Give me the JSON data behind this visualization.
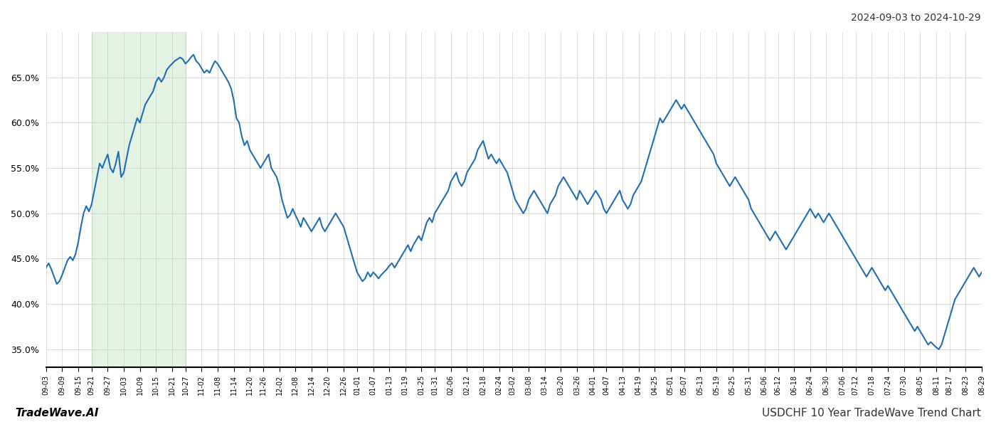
{
  "title_top_right": "2024-09-03 to 2024-10-29",
  "title_bottom_right": "USDCHF 10 Year TradeWave Trend Chart",
  "title_bottom_left": "TradeWave.AI",
  "line_color": "#1f6eb5",
  "line_width": 1.5,
  "shade_color": "#c8e6c9",
  "shade_alpha": 0.5,
  "shade_start_label": "09-21",
  "shade_end_label": "10-27",
  "background_color": "#ffffff",
  "grid_color": "#cccccc",
  "ylim_min": 33.0,
  "ylim_max": 70.0,
  "yticks": [
    35.0,
    40.0,
    45.0,
    50.0,
    55.0,
    60.0,
    65.0
  ],
  "xtick_labels": [
    "09-03",
    "09-09",
    "09-15",
    "09-21",
    "09-27",
    "10-03",
    "10-09",
    "10-15",
    "10-21",
    "10-27",
    "11-02",
    "11-08",
    "11-14",
    "11-20",
    "11-26",
    "12-02",
    "12-08",
    "12-14",
    "12-20",
    "12-26",
    "01-01",
    "01-07",
    "01-13",
    "01-19",
    "01-25",
    "01-31",
    "02-06",
    "02-12",
    "02-18",
    "02-24",
    "03-02",
    "03-08",
    "03-14",
    "03-20",
    "03-26",
    "04-01",
    "04-07",
    "04-13",
    "04-19",
    "04-25",
    "05-01",
    "05-07",
    "05-13",
    "05-19",
    "05-25",
    "05-31",
    "06-06",
    "06-12",
    "06-18",
    "06-24",
    "06-30",
    "07-06",
    "07-12",
    "07-18",
    "07-24",
    "07-30",
    "08-05",
    "08-11",
    "08-17",
    "08-23",
    "08-29"
  ],
  "data": [
    44.0,
    44.5,
    43.8,
    43.0,
    42.2,
    42.5,
    43.2,
    44.0,
    44.8,
    45.2,
    44.8,
    45.5,
    46.8,
    48.5,
    50.0,
    50.8,
    50.2,
    51.0,
    52.5,
    54.0,
    55.5,
    55.0,
    55.8,
    56.5,
    55.0,
    54.5,
    55.5,
    56.8,
    54.0,
    54.5,
    56.0,
    57.5,
    58.5,
    59.5,
    60.5,
    60.0,
    61.0,
    62.0,
    62.5,
    63.0,
    63.5,
    64.5,
    65.0,
    64.5,
    65.0,
    65.8,
    66.2,
    66.5,
    66.8,
    67.0,
    67.2,
    67.0,
    66.5,
    66.8,
    67.2,
    67.5,
    66.8,
    66.5,
    66.0,
    65.5,
    65.8,
    65.5,
    66.2,
    66.8,
    66.5,
    66.0,
    65.5,
    65.0,
    64.5,
    63.8,
    62.5,
    60.5,
    60.0,
    58.5,
    57.5,
    58.0,
    57.0,
    56.5,
    56.0,
    55.5,
    55.0,
    55.5,
    56.0,
    56.5,
    55.0,
    54.5,
    54.0,
    53.0,
    51.5,
    50.5,
    49.5,
    49.8,
    50.5,
    49.8,
    49.2,
    48.5,
    49.5,
    49.0,
    48.5,
    48.0,
    48.5,
    49.0,
    49.5,
    48.5,
    48.0,
    48.5,
    49.0,
    49.5,
    50.0,
    49.5,
    49.0,
    48.5,
    47.5,
    46.5,
    45.5,
    44.5,
    43.5,
    43.0,
    42.5,
    42.8,
    43.5,
    43.0,
    43.5,
    43.2,
    42.8,
    43.2,
    43.5,
    43.8,
    44.2,
    44.5,
    44.0,
    44.5,
    45.0,
    45.5,
    46.0,
    46.5,
    45.8,
    46.5,
    47.0,
    47.5,
    47.0,
    48.0,
    49.0,
    49.5,
    49.0,
    50.0,
    50.5,
    51.0,
    51.5,
    52.0,
    52.5,
    53.5,
    54.0,
    54.5,
    53.5,
    53.0,
    53.5,
    54.5,
    55.0,
    55.5,
    56.0,
    57.0,
    57.5,
    58.0,
    57.0,
    56.0,
    56.5,
    56.0,
    55.5,
    56.0,
    55.5,
    55.0,
    54.5,
    53.5,
    52.5,
    51.5,
    51.0,
    50.5,
    50.0,
    50.5,
    51.5,
    52.0,
    52.5,
    52.0,
    51.5,
    51.0,
    50.5,
    50.0,
    51.0,
    51.5,
    52.0,
    53.0,
    53.5,
    54.0,
    53.5,
    53.0,
    52.5,
    52.0,
    51.5,
    52.5,
    52.0,
    51.5,
    51.0,
    51.5,
    52.0,
    52.5,
    52.0,
    51.5,
    50.5,
    50.0,
    50.5,
    51.0,
    51.5,
    52.0,
    52.5,
    51.5,
    51.0,
    50.5,
    51.0,
    52.0,
    52.5,
    53.0,
    53.5,
    54.5,
    55.5,
    56.5,
    57.5,
    58.5,
    59.5,
    60.5,
    60.0,
    60.5,
    61.0,
    61.5,
    62.0,
    62.5,
    62.0,
    61.5,
    62.0,
    61.5,
    61.0,
    60.5,
    60.0,
    59.5,
    59.0,
    58.5,
    58.0,
    57.5,
    57.0,
    56.5,
    55.5,
    55.0,
    54.5,
    54.0,
    53.5,
    53.0,
    53.5,
    54.0,
    53.5,
    53.0,
    52.5,
    52.0,
    51.5,
    50.5,
    50.0,
    49.5,
    49.0,
    48.5,
    48.0,
    47.5,
    47.0,
    47.5,
    48.0,
    47.5,
    47.0,
    46.5,
    46.0,
    46.5,
    47.0,
    47.5,
    48.0,
    48.5,
    49.0,
    49.5,
    50.0,
    50.5,
    50.0,
    49.5,
    50.0,
    49.5,
    49.0,
    49.5,
    50.0,
    49.5,
    49.0,
    48.5,
    48.0,
    47.5,
    47.0,
    46.5,
    46.0,
    45.5,
    45.0,
    44.5,
    44.0,
    43.5,
    43.0,
    43.5,
    44.0,
    43.5,
    43.0,
    42.5,
    42.0,
    41.5,
    42.0,
    41.5,
    41.0,
    40.5,
    40.0,
    39.5,
    39.0,
    38.5,
    38.0,
    37.5,
    37.0,
    37.5,
    37.0,
    36.5,
    36.0,
    35.5,
    35.8,
    35.5,
    35.2,
    35.0,
    35.5,
    36.5,
    37.5,
    38.5,
    39.5,
    40.5,
    41.0,
    41.5,
    42.0,
    42.5,
    43.0,
    43.5,
    44.0,
    43.5,
    43.0,
    43.5
  ]
}
